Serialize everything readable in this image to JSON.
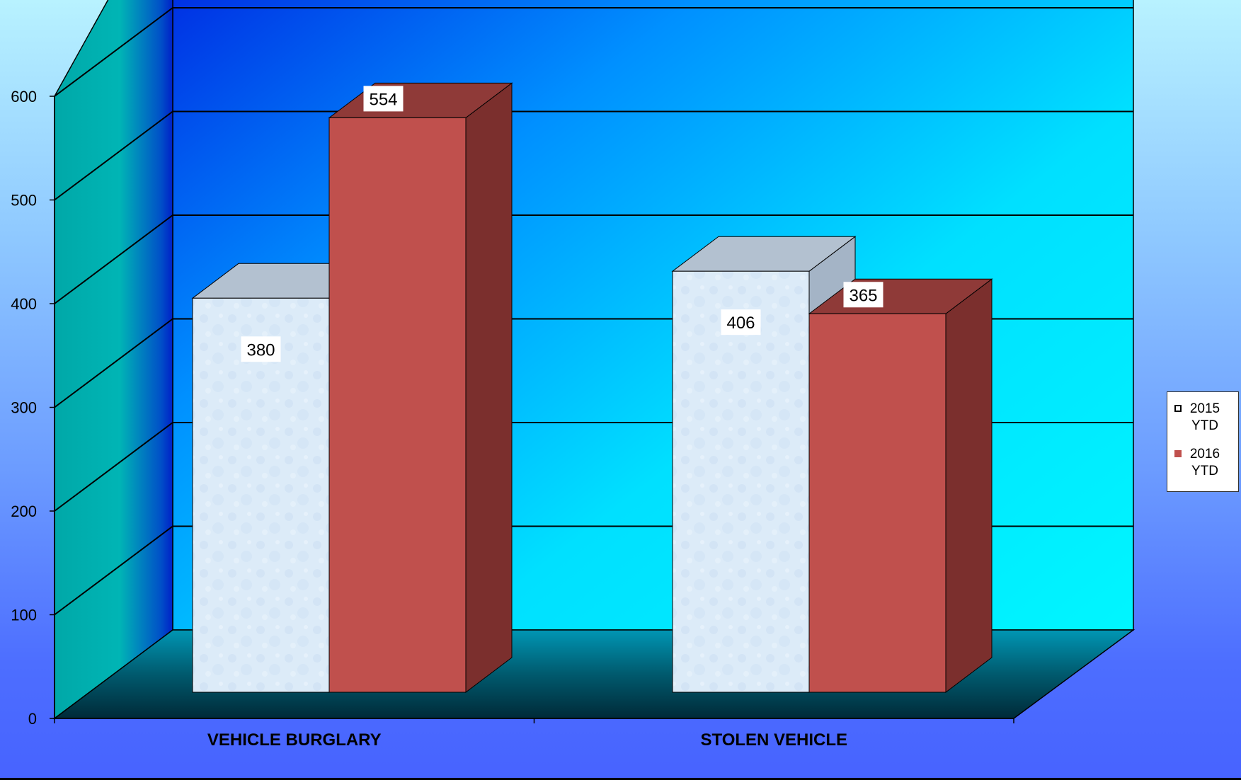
{
  "chart_data": {
    "type": "bar",
    "style": "3d-clustered-column",
    "categories": [
      "VEHICLE BURGLARY",
      "STOLEN VEHICLE"
    ],
    "series": [
      {
        "name": "2015\nYTD",
        "values": [
          380,
          406
        ],
        "color": "#dcebf8"
      },
      {
        "name": "2016\nYTD",
        "values": [
          554,
          365
        ],
        "color": "#c0504d"
      }
    ],
    "yticks": [
      "0",
      "100",
      "200",
      "300",
      "400",
      "500",
      "600"
    ],
    "ylim": [
      0,
      600
    ],
    "grid": true,
    "legend_position": "right"
  }
}
